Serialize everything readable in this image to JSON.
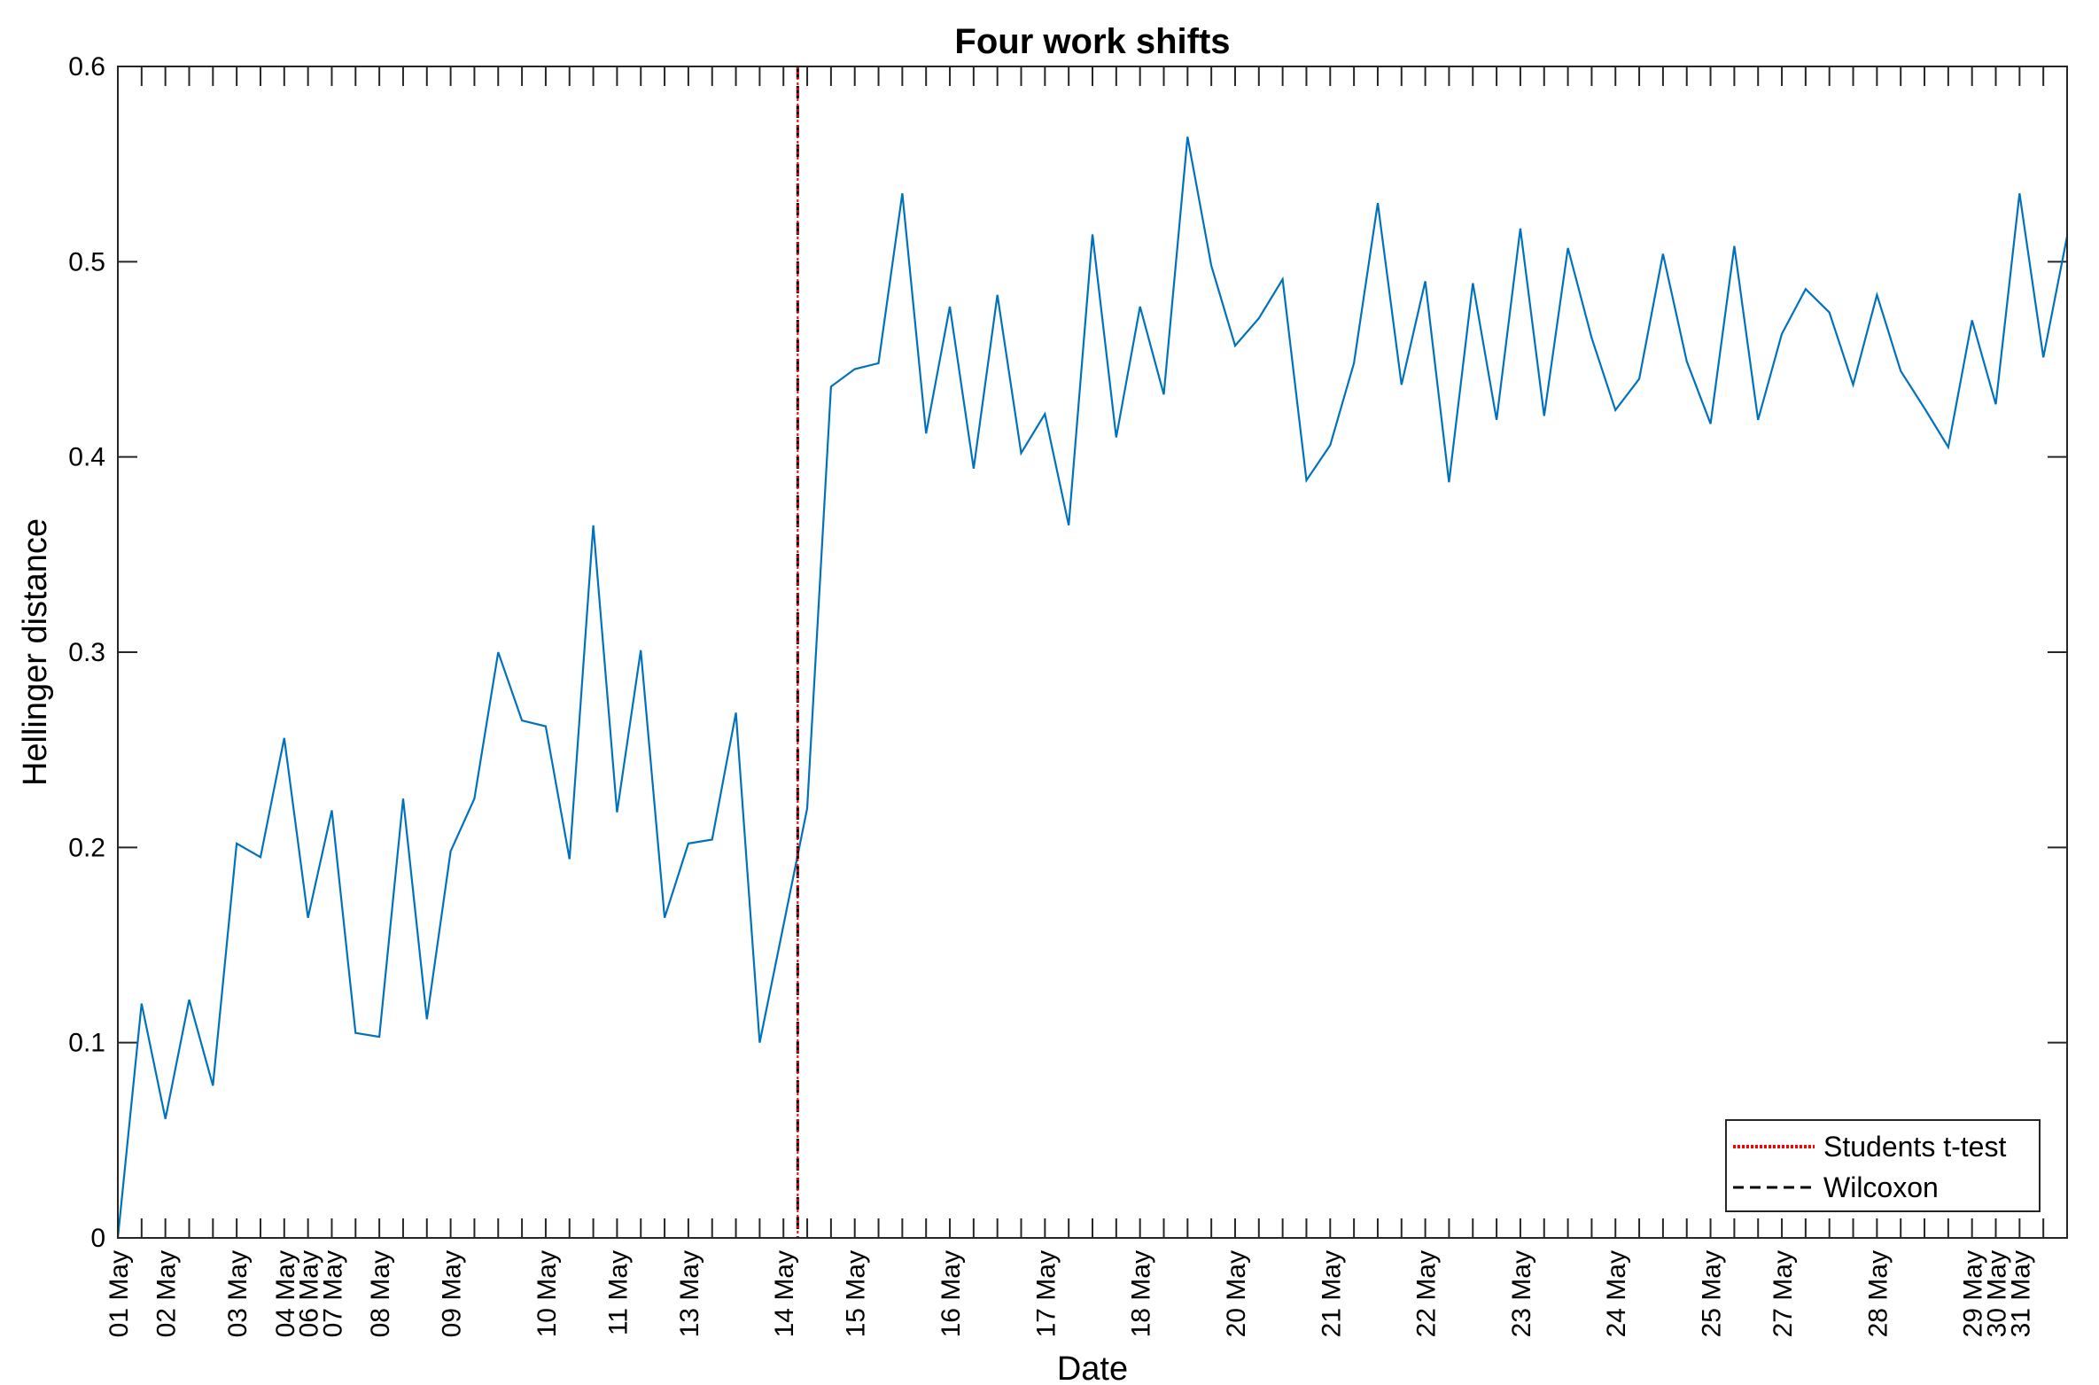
{
  "chart_data": {
    "type": "line",
    "title": "Four work shifts",
    "xlabel": "Date",
    "ylabel": "Hellinger distance",
    "ylim": [
      0,
      0.6
    ],
    "yticks": [
      "0",
      "0.1",
      "0.2",
      "0.3",
      "0.4",
      "0.5",
      "0.6"
    ],
    "x_tick_labels": [
      "01 May",
      "02 May",
      "03 May",
      "04 May",
      "06 May",
      "07 May",
      "08 May",
      "09 May",
      "10 May",
      "11 May",
      "13 May",
      "14 May",
      "15 May",
      "16 May",
      "17 May",
      "18 May",
      "20 May",
      "21 May",
      "22 May",
      "23 May",
      "24 May",
      "25 May",
      "27 May",
      "28 May",
      "29 May",
      "30 May",
      "31 May"
    ],
    "x_tick_index": [
      0,
      2,
      5,
      7,
      8,
      9,
      11,
      14,
      18,
      21,
      24,
      28,
      31,
      35,
      39,
      43,
      47,
      51,
      55,
      59,
      63,
      67,
      70,
      74,
      78,
      79,
      80
    ],
    "series": [
      {
        "color": "#0072BD",
        "values": [
          0.0,
          0.12,
          0.061,
          0.122,
          0.078,
          0.202,
          0.195,
          0.256,
          0.164,
          0.219,
          0.105,
          0.103,
          0.225,
          0.112,
          0.198,
          0.225,
          0.3,
          0.265,
          0.262,
          0.194,
          0.365,
          0.218,
          0.301,
          0.164,
          0.202,
          0.204,
          0.269,
          0.1,
          0.16,
          0.22,
          0.436,
          0.445,
          0.448,
          0.535,
          0.412,
          0.477,
          0.394,
          0.483,
          0.402,
          0.422,
          0.365,
          0.514,
          0.41,
          0.477,
          0.432,
          0.564,
          0.498,
          0.457,
          0.471,
          0.491,
          0.388,
          0.406,
          0.448,
          0.53,
          0.437,
          0.49,
          0.387,
          0.489,
          0.419,
          0.517,
          0.421,
          0.507,
          0.461,
          0.424,
          0.44,
          0.504,
          0.449,
          0.417,
          0.508,
          0.419,
          0.463,
          0.486,
          0.474,
          0.437,
          0.483,
          0.444,
          0.425,
          0.405,
          0.47,
          0.427,
          0.535,
          0.451,
          0.513
        ]
      }
    ],
    "change_point_index": 28.6,
    "legend": {
      "placement": "bottom-right",
      "entries": [
        {
          "label": "Students t-test",
          "color": "#FF0000",
          "style": "dotted"
        },
        {
          "label": "Wilcoxon",
          "color": "#000000",
          "style": "dashed"
        }
      ]
    },
    "grid": false
  }
}
